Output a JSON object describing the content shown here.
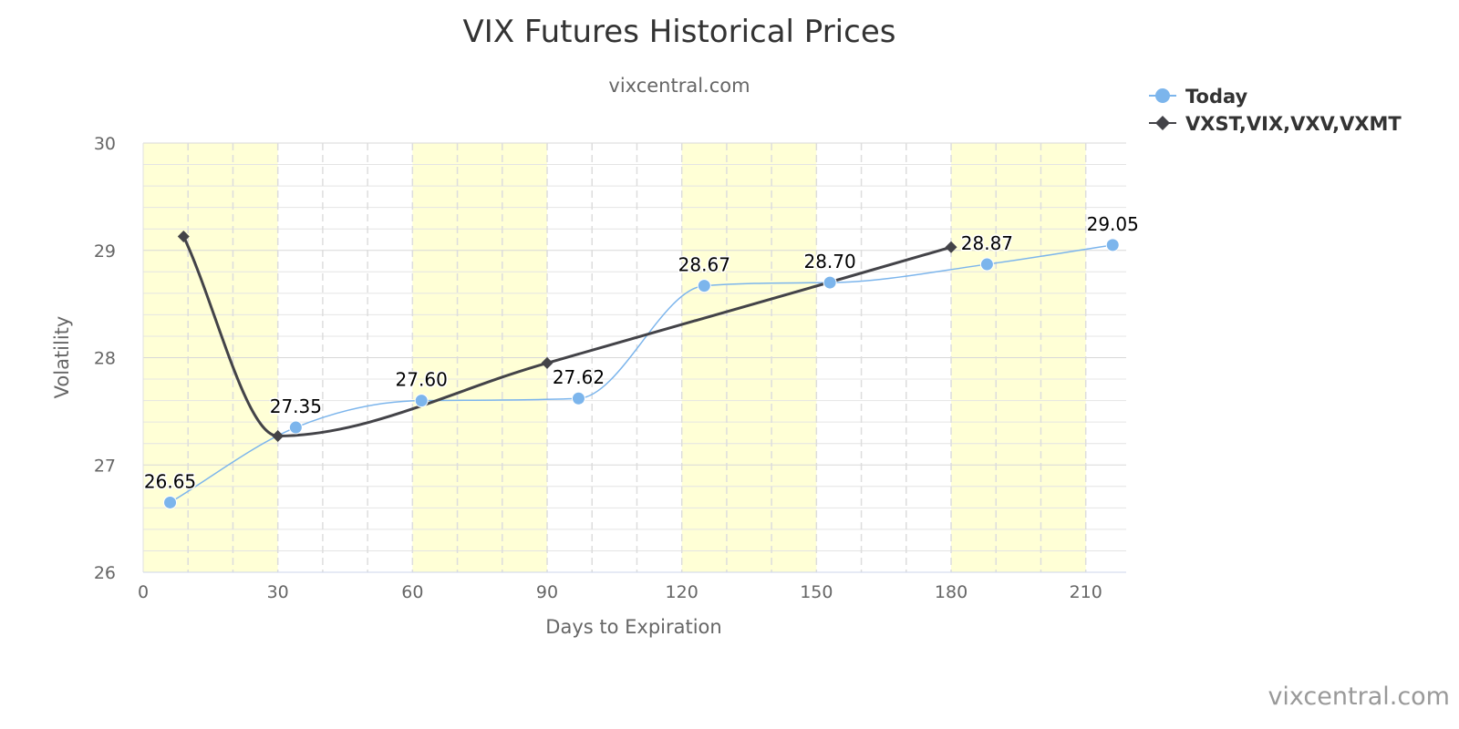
{
  "chart_data": {
    "type": "line",
    "title": "VIX Futures Historical Prices",
    "subtitle": "vixcentral.com",
    "xlabel": "Days to Expiration",
    "ylabel": "Volatility",
    "xlim": [
      0,
      219
    ],
    "ylim": [
      26,
      30
    ],
    "x_ticks": [
      0,
      30,
      60,
      90,
      120,
      150,
      180,
      210
    ],
    "y_ticks": [
      26,
      27,
      28,
      29,
      30
    ],
    "grid": true,
    "shaded_x_bands": [
      [
        0,
        30
      ],
      [
        60,
        90
      ],
      [
        120,
        150
      ],
      [
        180,
        210
      ]
    ],
    "legend_placement": "top-right",
    "series": [
      {
        "name": "Today",
        "color": "#7cb5ec",
        "marker": "circle",
        "x": [
          6,
          34,
          62,
          97,
          125,
          153,
          188,
          216
        ],
        "y": [
          26.65,
          27.35,
          27.6,
          27.62,
          28.67,
          28.7,
          28.87,
          29.05
        ],
        "labels": [
          "26.65",
          "27.35",
          "27.60",
          "27.62",
          "28.67",
          "28.70",
          "28.87",
          "29.05"
        ]
      },
      {
        "name": "VXST,VIX,VXV,VXMT",
        "color": "#434348",
        "marker": "diamond",
        "x": [
          9,
          30,
          90,
          180
        ],
        "y": [
          29.13,
          27.27,
          27.95,
          29.03
        ]
      }
    ]
  },
  "credit": "vixcentral.com"
}
